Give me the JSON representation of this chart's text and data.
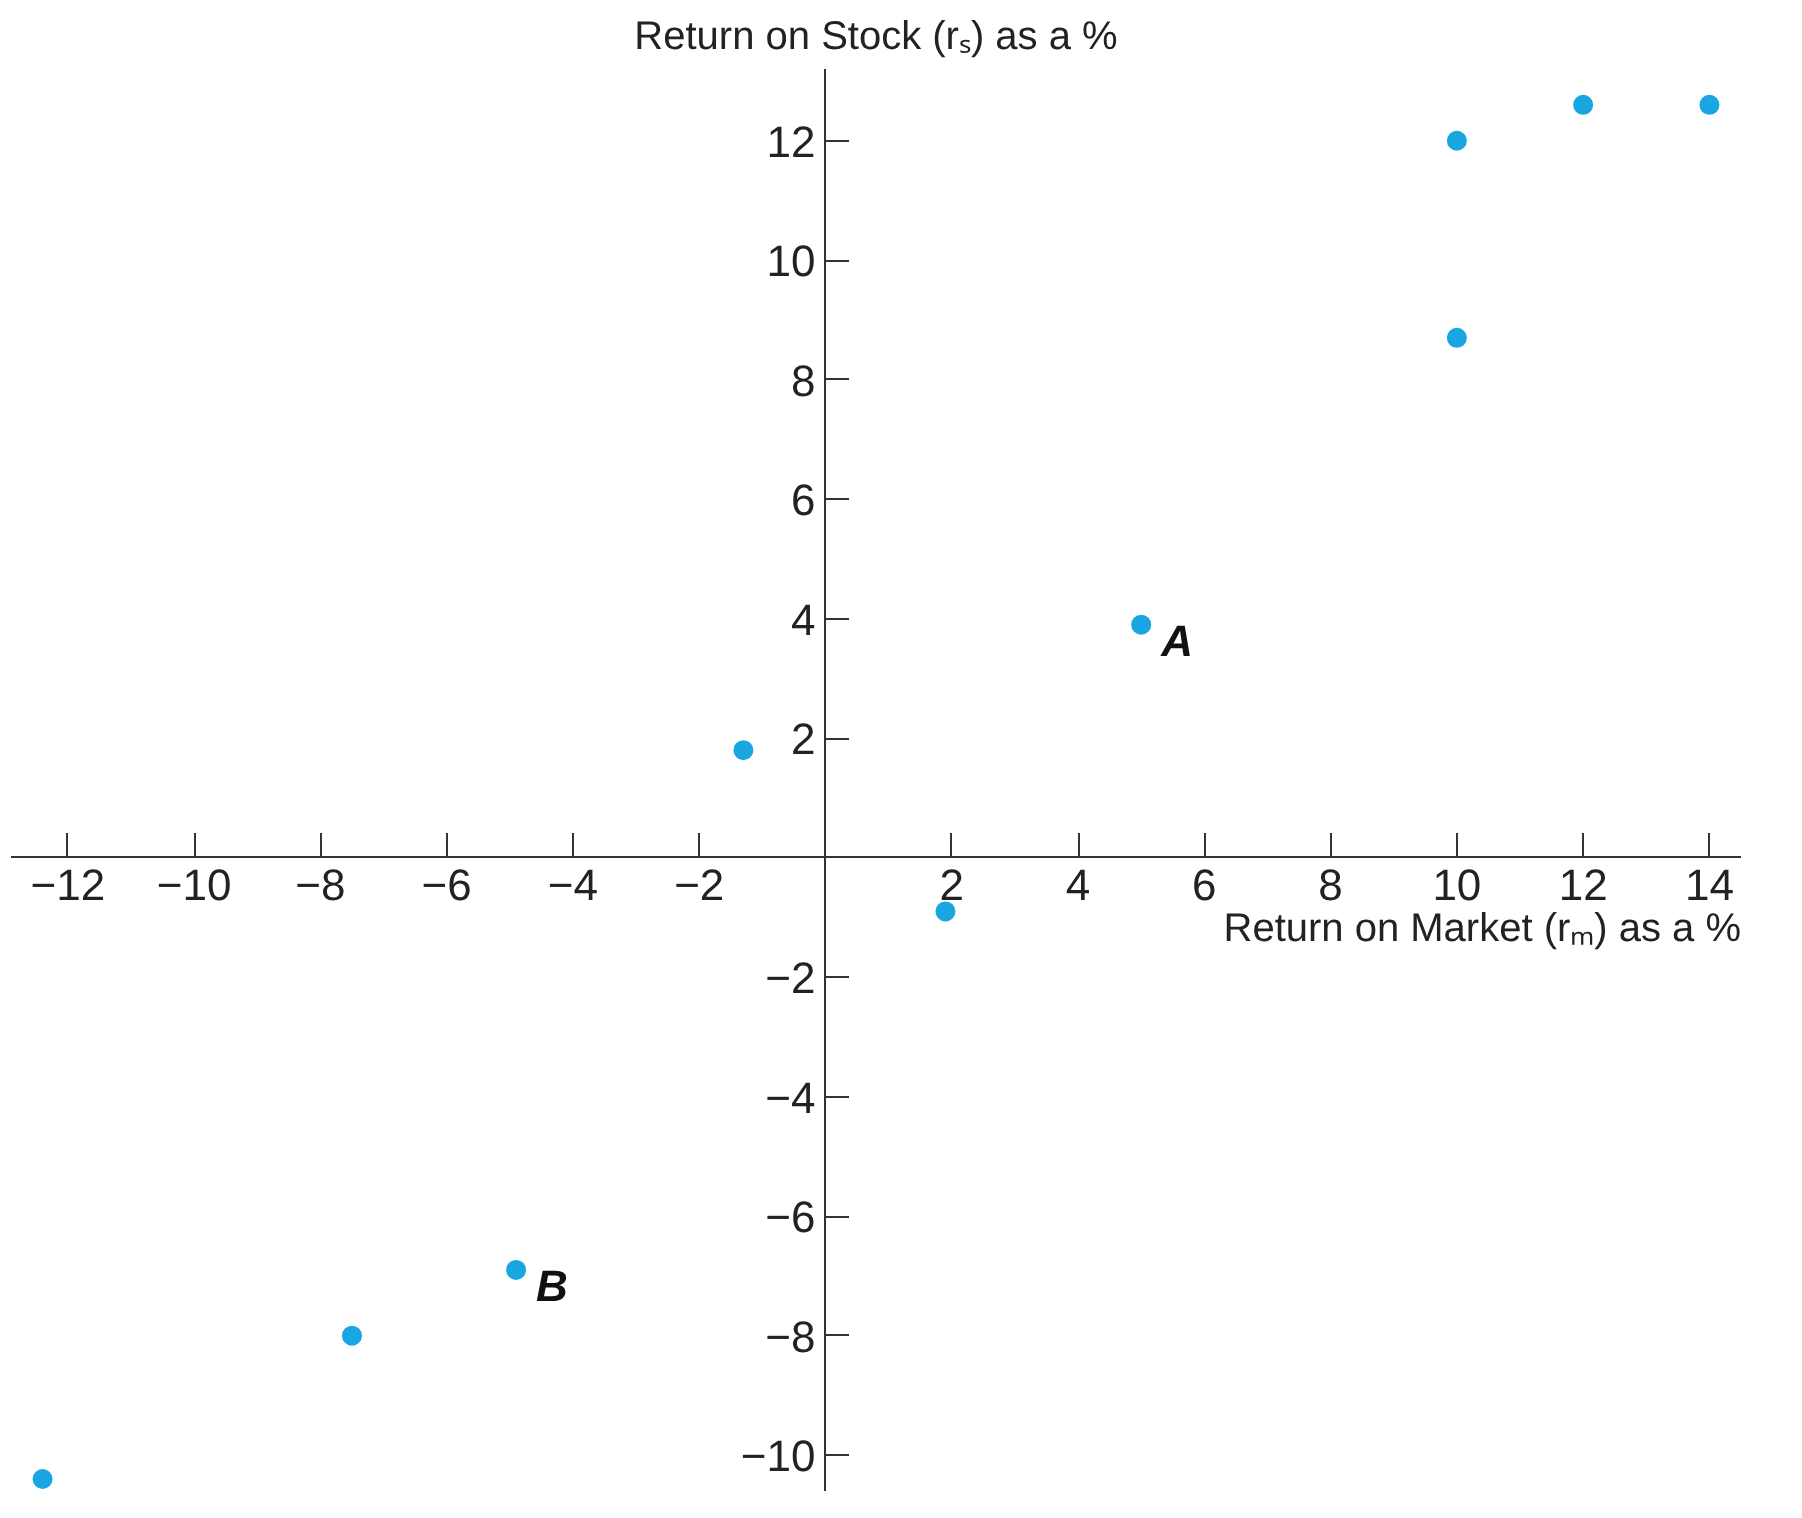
{
  "chart_data": {
    "type": "scatter",
    "xlabel": "Return on Market (rₘ) as a %",
    "ylabel": "Return on Stock (rₛ) as a %",
    "x": [
      -12.4,
      -7.5,
      -4.9,
      -1.3,
      1.9,
      5,
      10,
      10,
      12,
      14
    ],
    "series": [
      {
        "color": "#1aa6e0",
        "values": [
          -10.4,
          -8,
          -6.9,
          1.8,
          -0.9,
          3.9,
          12,
          8.7,
          12.6,
          12.6
        ]
      }
    ],
    "marker": "circle",
    "xlim": [
      -12.9,
      14.5
    ],
    "ylim": [
      -10.6,
      13.2
    ],
    "xticks": [
      {
        "value": -12,
        "label": "−12"
      },
      {
        "value": -10,
        "label": "−10"
      },
      {
        "value": -8,
        "label": "−8"
      },
      {
        "value": -6,
        "label": "−6"
      },
      {
        "value": -4,
        "label": "−4"
      },
      {
        "value": -2,
        "label": "−2"
      },
      2,
      4,
      6,
      8,
      10,
      12,
      14
    ],
    "yticks": [
      {
        "value": -10,
        "label": "−10"
      },
      {
        "value": -8,
        "label": "−8"
      },
      {
        "value": -6,
        "label": "−6"
      },
      {
        "value": -4,
        "label": "−4"
      },
      {
        "value": -2,
        "label": "−2"
      },
      2,
      4,
      6,
      8,
      10,
      12
    ],
    "annotations": [
      {
        "text": "A",
        "x": 5,
        "y": 3.9
      },
      {
        "text": "B",
        "x": -4.9,
        "y": -6.9
      }
    ]
  }
}
